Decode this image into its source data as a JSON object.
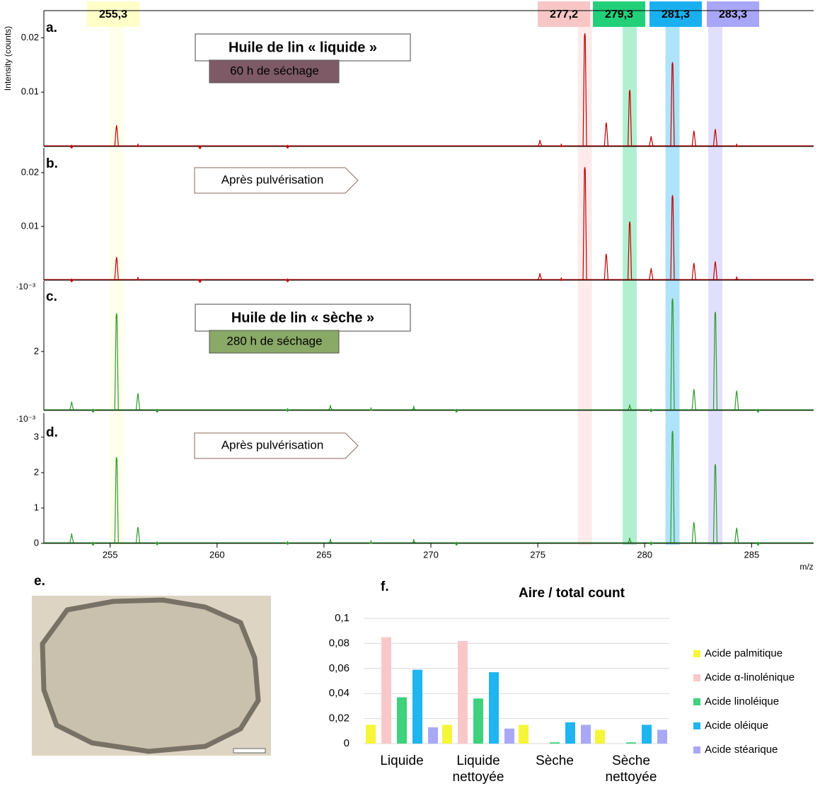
{
  "chart_data": [
    {
      "type": "spectrum",
      "label": "a.",
      "ylabel": "Intensity (counts)",
      "color": "#c00000",
      "xlim": [
        251.9,
        287.9
      ],
      "ylim": [
        0,
        0.025
      ],
      "yticks": [
        0.01,
        0.02
      ],
      "x": [
        253.2,
        255.3,
        256.3,
        259.2,
        263.3,
        275.1,
        276.1,
        277.2,
        278.2,
        279.3,
        280.3,
        281.3,
        282.3,
        283.3,
        284.3
      ],
      "values": [
        0.0003,
        0.0039,
        0.0005,
        0.0002,
        0.0003,
        0.0012,
        0.0005,
        0.0208,
        0.0044,
        0.0104,
        0.0019,
        0.0155,
        0.0029,
        0.0032,
        0.0005
      ],
      "highlights": [
        {
          "value": 255.3,
          "label": "255,3",
          "color": "#ffffc8"
        },
        {
          "value": 277.2,
          "label": "277,2",
          "color": "#f8c6c6"
        },
        {
          "value": 279.3,
          "label": "279,3",
          "color": "#22d07a"
        },
        {
          "value": 281.3,
          "label": "281,3",
          "color": "#1ab0f0"
        },
        {
          "value": 283.3,
          "label": "283,3",
          "color": "#a8a6f6"
        }
      ],
      "box_title": {
        "text": "Huile de lin « liquide »",
        "color": "#c00000"
      },
      "box_note": {
        "text": "60 h de séchage",
        "fill": "#7e5a67"
      }
    },
    {
      "type": "spectrum",
      "label": "b.",
      "color": "#c00000",
      "xlim": [
        251.9,
        287.9
      ],
      "ylim": [
        0,
        0.0246
      ],
      "yticks": [
        0.01,
        0.02
      ],
      "x": [
        253.2,
        255.3,
        256.3,
        259.2,
        263.3,
        275.1,
        276.1,
        277.2,
        278.2,
        279.3,
        280.3,
        281.3,
        282.3,
        283.3,
        284.3
      ],
      "values": [
        0.0003,
        0.0043,
        0.0006,
        0.0002,
        0.0003,
        0.0013,
        0.0005,
        0.021,
        0.0049,
        0.0109,
        0.0022,
        0.0158,
        0.0032,
        0.0035,
        0.0007
      ],
      "arrow_note": "Après pulvérisation"
    },
    {
      "type": "spectrum",
      "label": "c.",
      "color": "#2e9a2e",
      "y_multiplier": "·10⁻³",
      "xlim": [
        251.9,
        287.9
      ],
      "ylim": [
        0,
        4.4
      ],
      "yticks": [
        2
      ],
      "x": [
        253.2,
        254.2,
        255.3,
        256.3,
        257.2,
        263.3,
        265.3,
        267.2,
        269.2,
        271.2,
        279.3,
        280.3,
        281.3,
        282.3,
        283.3,
        284.3,
        285.3
      ],
      "values": [
        0.3,
        0.05,
        3.3,
        0.58,
        0.05,
        0.07,
        0.18,
        0.1,
        0.15,
        0.05,
        0.2,
        0.06,
        3.8,
        0.72,
        3.35,
        0.67,
        0.05
      ],
      "box_title": {
        "text": "Huile de lin « sèche »",
        "color": "#76923c"
      },
      "box_note": {
        "text": "280 h de séchage",
        "fill": "#8aa866"
      }
    },
    {
      "type": "spectrum",
      "label": "d.",
      "color": "#2e9a2e",
      "y_multiplier": "·10⁻³",
      "xlim": [
        251.9,
        287.9
      ],
      "ylim": [
        0,
        3.68
      ],
      "yticks": [
        0,
        1,
        2,
        3
      ],
      "xticks": [
        255,
        260,
        265,
        270,
        275,
        280,
        285
      ],
      "xlabel": "m/z",
      "x": [
        253.2,
        254.2,
        255.3,
        256.3,
        257.2,
        263.3,
        265.3,
        267.2,
        269.2,
        271.2,
        279.3,
        280.3,
        281.3,
        282.3,
        283.3,
        284.3,
        285.3
      ],
      "values": [
        0.28,
        0.04,
        2.44,
        0.46,
        0.05,
        0.06,
        0.13,
        0.08,
        0.12,
        0.04,
        0.16,
        0.05,
        3.18,
        0.6,
        2.24,
        0.44,
        0.04
      ],
      "arrow_note": "Après pulvérisation"
    },
    {
      "type": "bar",
      "label": "f.",
      "title": "Aire / total count",
      "categories": [
        "Liquide",
        "Liquide nettoyée",
        "Sèche",
        "Sèche nettoyée"
      ],
      "series": [
        {
          "name": "Acide palmitique",
          "color": "#f5f53a",
          "values": [
            0.015,
            0.015,
            0.015,
            0.011
          ]
        },
        {
          "name": "Acide α-linolénique",
          "color": "#f8c8c8",
          "values": [
            0.085,
            0.082,
            0,
            0
          ]
        },
        {
          "name": "Acide linoléique",
          "color": "#3ed17e",
          "values": [
            0.037,
            0.036,
            0.001,
            0.001
          ]
        },
        {
          "name": "Acide oléique",
          "color": "#1fb5f0",
          "values": [
            0.059,
            0.057,
            0.017,
            0.015
          ]
        },
        {
          "name": "Acide stéarique",
          "color": "#a9a8f5",
          "values": [
            0.013,
            0.012,
            0.015,
            0.011
          ]
        }
      ],
      "ylim": [
        0,
        0.1
      ],
      "yticks": [
        0,
        {
          "value": 0.02,
          "label": "0,02"
        },
        {
          "value": 0.04,
          "label": "0,04"
        },
        {
          "value": 0.06,
          "label": "0,06"
        },
        {
          "value": 0.08,
          "label": "0,08"
        },
        {
          "value": 0.1,
          "label": "0,1"
        }
      ],
      "grid": true,
      "legend": "right"
    }
  ],
  "image": {
    "label": "e."
  }
}
